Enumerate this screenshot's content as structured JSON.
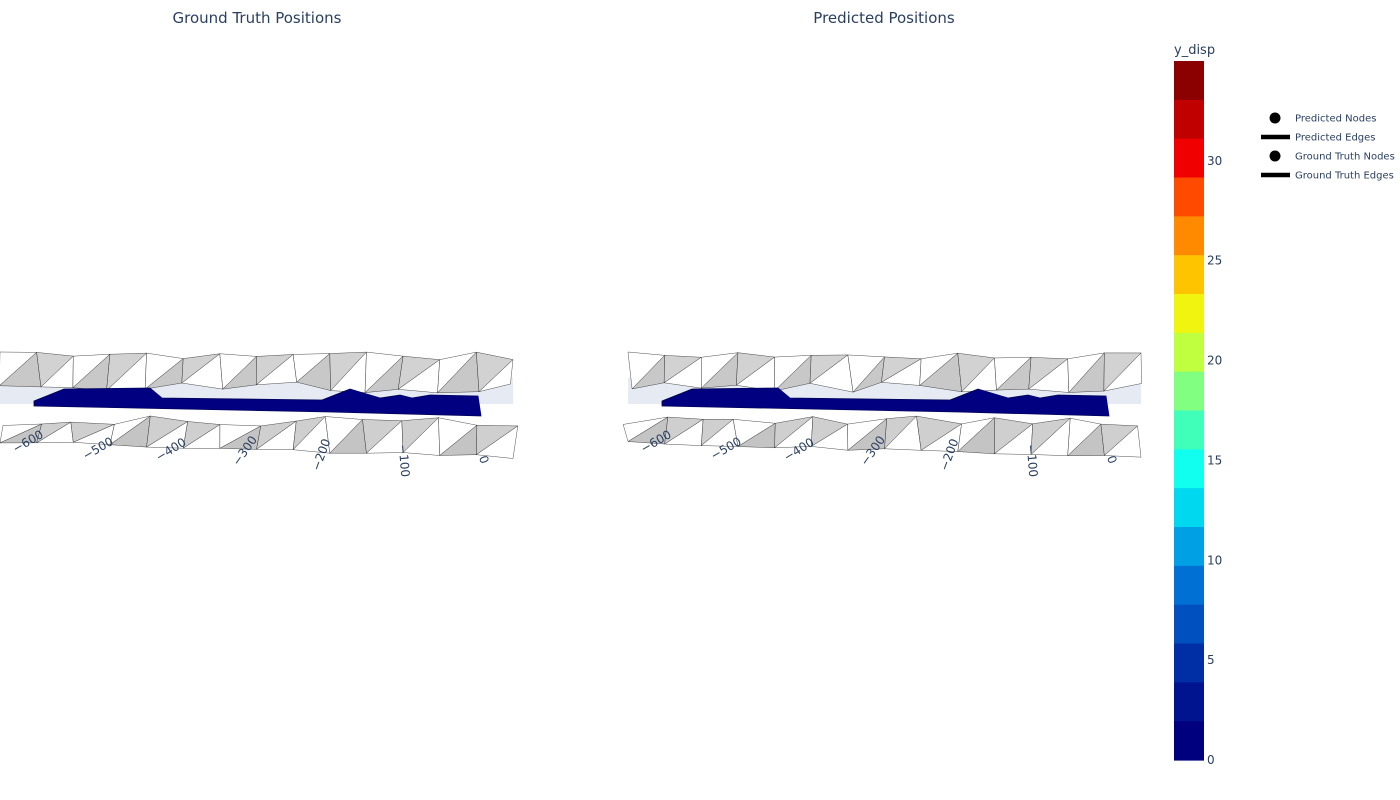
{
  "chart_data": {
    "type": "scatter3d-mesh",
    "subplots": [
      {
        "title": "Ground Truth Positions",
        "x_ticks": [
          "−600",
          "−500",
          "−400",
          "−300",
          "−200",
          "−100",
          "0"
        ]
      },
      {
        "title": "Predicted Positions",
        "x_ticks": [
          "−600",
          "−500",
          "−400",
          "−300",
          "−200",
          "−100",
          "0"
        ]
      }
    ],
    "colorbar": {
      "title": "y_disp",
      "range": [
        0,
        35
      ],
      "ticks": [
        0,
        5,
        10,
        15,
        20,
        25,
        30
      ],
      "colorscale": [
        "#00007f",
        "#001490",
        "#002fa5",
        "#0050bf",
        "#0070d5",
        "#00a0e5",
        "#00d8f0",
        "#10ffee",
        "#40ffb8",
        "#80ff80",
        "#c0ff40",
        "#f0f510",
        "#ffc400",
        "#ff8a00",
        "#ff4a00",
        "#f00000",
        "#c00000",
        "#8b0000"
      ]
    },
    "legend": [
      {
        "label": "Predicted Nodes",
        "symbol": "circle"
      },
      {
        "label": "Predicted Edges",
        "symbol": "line"
      },
      {
        "label": "Ground Truth Nodes",
        "symbol": "circle"
      },
      {
        "label": "Ground Truth Edges",
        "symbol": "line"
      }
    ],
    "mesh_color": "#000080"
  }
}
